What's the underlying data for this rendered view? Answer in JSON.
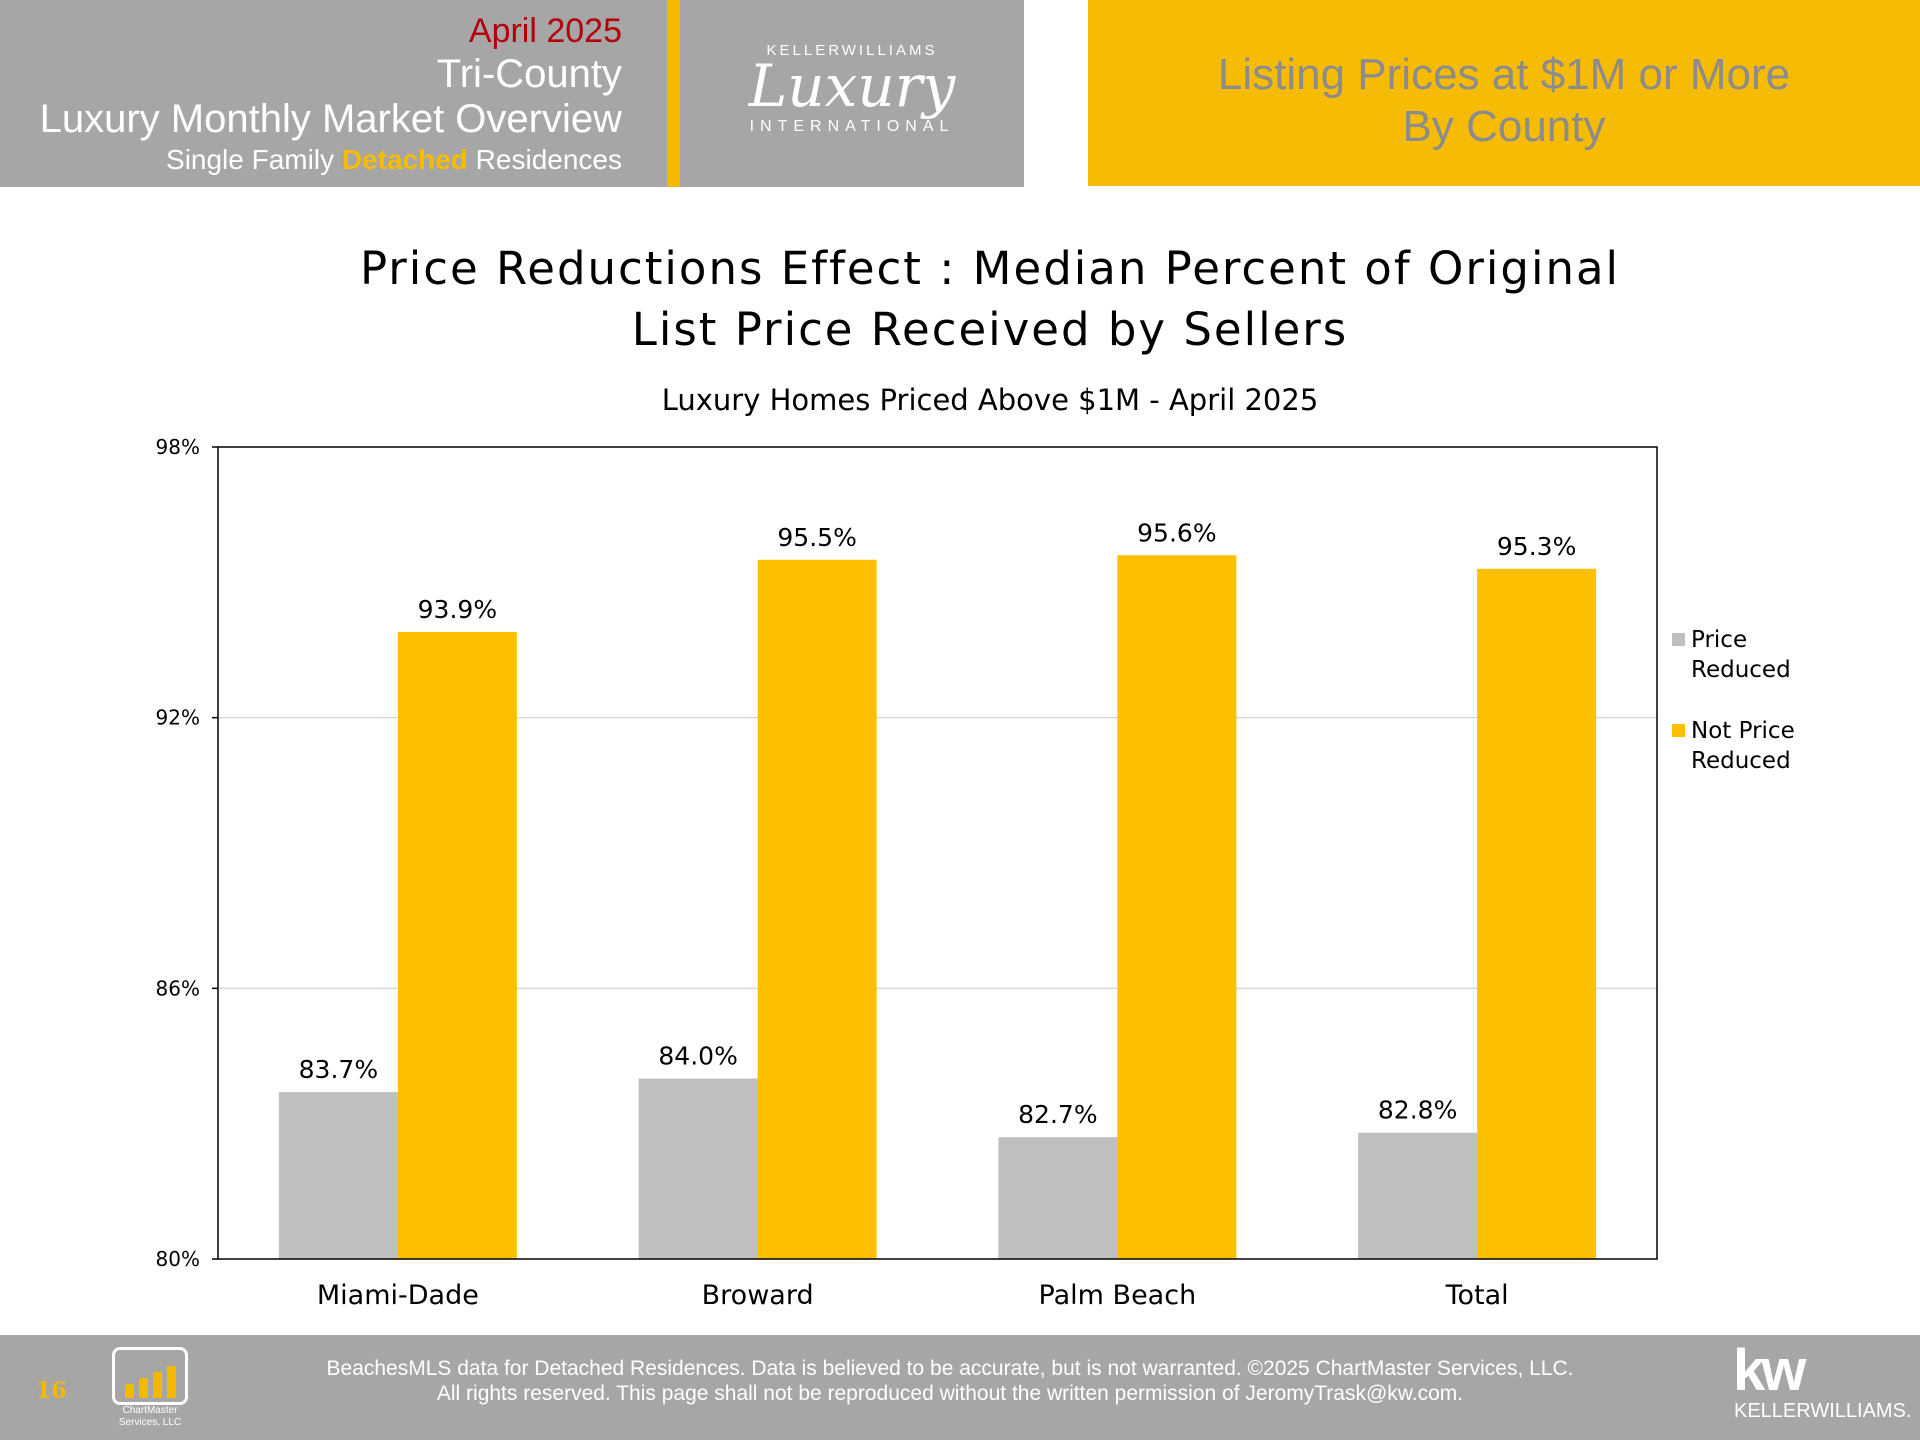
{
  "header": {
    "month": "April 2025",
    "region": "Tri-County",
    "overview": "Luxury Monthly Market Overview",
    "type_prefix": "Single Family ",
    "type_highlight": "Detached",
    "type_suffix": " Residences",
    "logo": {
      "top": "KELLERWILLIAMS",
      "script": "Luxury",
      "bottom": "INTERNATIONAL"
    },
    "banner_line1": "Listing Prices at $1M or More",
    "banner_line2": "By County"
  },
  "chart_data": {
    "type": "bar",
    "title_line1": "Price Reductions Effect : Median Percent of Original",
    "title_line2": "List Price Received by Sellers",
    "subtitle": "Luxury Homes Priced Above $1M - April 2025",
    "categories": [
      "Miami-Dade",
      "Broward",
      "Palm Beach",
      "Total"
    ],
    "series": [
      {
        "name": "Price Reduced",
        "color": "#bfbfbf",
        "values": [
          83.7,
          84.0,
          82.7,
          82.8
        ]
      },
      {
        "name": "Not Price Reduced",
        "color": "#fdc000",
        "values": [
          93.9,
          95.5,
          95.6,
          95.3
        ]
      }
    ],
    "data_labels": [
      [
        "83.7%",
        "84.0%",
        "82.7%",
        "82.8%"
      ],
      [
        "93.9%",
        "95.5%",
        "95.6%",
        "95.3%"
      ]
    ],
    "legend_lines": [
      [
        "Price",
        "Reduced"
      ],
      [
        "Not Price",
        "Reduced"
      ]
    ],
    "ylim": [
      80,
      98
    ],
    "yticks": [
      80,
      86,
      92,
      98
    ],
    "ytick_labels": [
      "80%",
      "86%",
      "92%",
      "98%"
    ],
    "grid": true,
    "legend_position": "right"
  },
  "footer": {
    "page_number": "16",
    "chartmaster_name_1": "ChartMaster",
    "chartmaster_name_2": "Services, LLC",
    "line1": "BeachesMLS data for Detached Residences.  Data is believed to be accurate, but is not warranted.   ©2025  ChartMaster Services, LLC.",
    "line2": "All rights reserved. This page shall not be reproduced without the written permission of JeromyTrask@kw.com.",
    "kw_mark": "kw",
    "kw_word": "KELLERWILLIAMS."
  }
}
